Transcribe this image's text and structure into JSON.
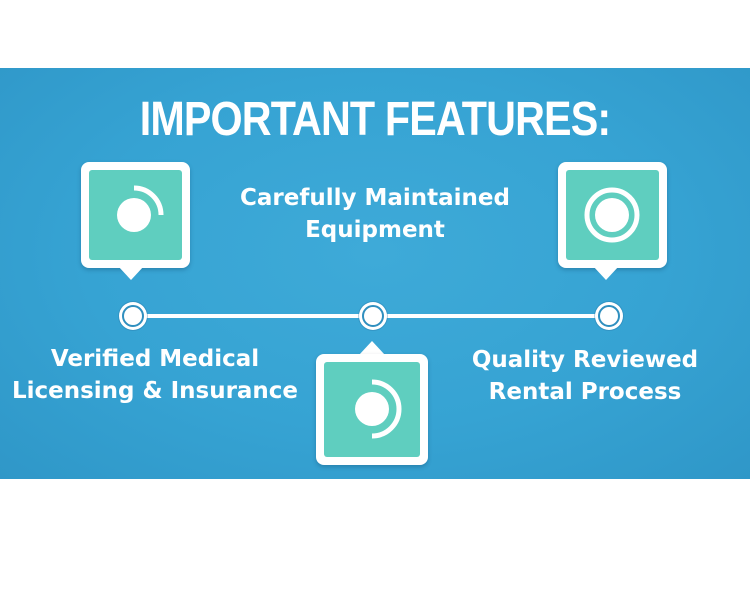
{
  "banner": {
    "title": "IMPORTANT FEATURES:",
    "background_color": "#36a3d3",
    "accent_color": "#5fcebf"
  },
  "features": [
    {
      "lines": [
        "Verified Medical",
        "Licensing & Insurance"
      ],
      "icon": "partial-ring-icon"
    },
    {
      "lines": [
        "Carefully Maintained",
        "Equipment"
      ],
      "icon": "half-ring-icon"
    },
    {
      "lines": [
        "Quality Reviewed",
        "Rental Process"
      ],
      "icon": "full-ring-icon"
    }
  ]
}
